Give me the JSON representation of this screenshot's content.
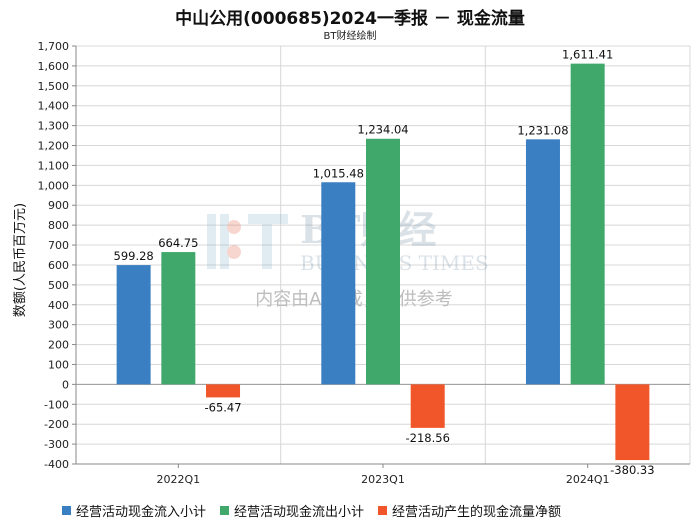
{
  "title": "中山公用(000685)2024一季报 － 现金流量",
  "subtitle": "BT财经绘制",
  "watermark": {
    "brand": "BT财经",
    "english": "BUSINESS TIMES",
    "notice": "内容由AI生成，仅供参考"
  },
  "colors": {
    "inflow": "#3a7fc1",
    "outflow": "#41a86c",
    "net": "#f0562a",
    "grid": "#d8d8d8",
    "axis": "#888888"
  },
  "chart_data": {
    "type": "bar",
    "ylabel": "数额(人民币百万元)",
    "ylim": [
      -400,
      1700
    ],
    "ytick_step": 100,
    "grid": true,
    "legend_position": "bottom",
    "categories": [
      "2022Q1",
      "2023Q1",
      "2024Q1"
    ],
    "series": [
      {
        "name": "经营活动现金流入小计",
        "color": "#3a7fc1",
        "values": [
          599.28,
          1015.48,
          1231.08
        ],
        "labels": [
          "599.28",
          "1,015.48",
          "1,231.08"
        ]
      },
      {
        "name": "经营活动现金流出小计",
        "color": "#41a86c",
        "values": [
          664.75,
          1234.04,
          1611.41
        ],
        "labels": [
          "664.75",
          "1,234.04",
          "1,611.41"
        ]
      },
      {
        "name": "经营活动产生的现金流量净额",
        "color": "#f0562a",
        "values": [
          -65.47,
          -218.56,
          -380.33
        ],
        "labels": [
          "-65.47",
          "-218.56",
          "-380.33"
        ]
      }
    ]
  }
}
